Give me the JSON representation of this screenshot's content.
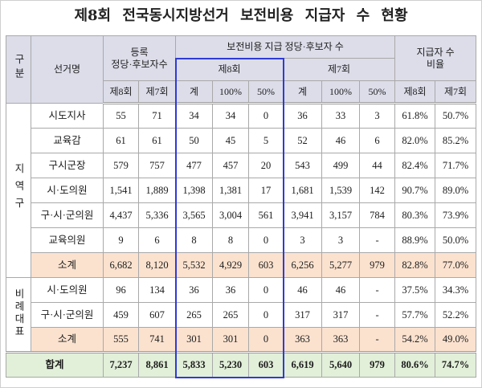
{
  "colors": {
    "header_bg": "#dcdde9",
    "subtotal_bg": "#fbe2cf",
    "total_bg": "#e2efd9",
    "highlight_border": "#2f3bd6"
  },
  "chart_data": {
    "type": "table",
    "title": "제8회 전국동시지방선거 보전비용 지급자 수 현황",
    "headers": {
      "category": "구분",
      "election": "선거명",
      "registered": [
        "등록",
        "정당·후보자수"
      ],
      "reimbursed": "보전비용 지급 정당·후보자 수",
      "ratio": [
        "지급자 수",
        "비율"
      ],
      "eighth": "제8회",
      "seventh": "제7회",
      "sum": "계",
      "full": "100%",
      "half": "50%"
    },
    "groups": [
      {
        "label": "지역구",
        "rows": [
          {
            "name": "시도지사",
            "registered": [
              "55",
              "71"
            ],
            "reimbursed_8th": [
              "34",
              "34",
              "0"
            ],
            "reimbursed_7th": [
              "36",
              "33",
              "3"
            ],
            "ratio": [
              "61.8%",
              "50.7%"
            ]
          },
          {
            "name": "교육감",
            "registered": [
              "61",
              "61"
            ],
            "reimbursed_8th": [
              "50",
              "45",
              "5"
            ],
            "reimbursed_7th": [
              "52",
              "46",
              "6"
            ],
            "ratio": [
              "82.0%",
              "85.2%"
            ]
          },
          {
            "name": "구시군장",
            "registered": [
              "579",
              "757"
            ],
            "reimbursed_8th": [
              "477",
              "457",
              "20"
            ],
            "reimbursed_7th": [
              "543",
              "499",
              "44"
            ],
            "ratio": [
              "82.4%",
              "71.7%"
            ]
          },
          {
            "name": "시·도의원",
            "registered": [
              "1,541",
              "1,889"
            ],
            "reimbursed_8th": [
              "1,398",
              "1,381",
              "17"
            ],
            "reimbursed_7th": [
              "1,681",
              "1,539",
              "142"
            ],
            "ratio": [
              "90.7%",
              "89.0%"
            ]
          },
          {
            "name": "구·시·군의원",
            "registered": [
              "4,437",
              "5,336"
            ],
            "reimbursed_8th": [
              "3,565",
              "3,004",
              "561"
            ],
            "reimbursed_7th": [
              "3,941",
              "3,157",
              "784"
            ],
            "ratio": [
              "80.3%",
              "73.9%"
            ]
          },
          {
            "name": "교육의원",
            "registered": [
              "9",
              "6"
            ],
            "reimbursed_8th": [
              "8",
              "8",
              "0"
            ],
            "reimbursed_7th": [
              "3",
              "3",
              "-"
            ],
            "ratio": [
              "88.9%",
              "50.0%"
            ]
          }
        ],
        "subtotal": {
          "name": "소계",
          "registered": [
            "6,682",
            "8,120"
          ],
          "reimbursed_8th": [
            "5,532",
            "4,929",
            "603"
          ],
          "reimbursed_7th": [
            "6,256",
            "5,277",
            "979"
          ],
          "ratio": [
            "82.8%",
            "77.0%"
          ]
        }
      },
      {
        "label": "비례대표",
        "rows": [
          {
            "name": "시·도의원",
            "registered": [
              "96",
              "134"
            ],
            "reimbursed_8th": [
              "36",
              "36",
              "0"
            ],
            "reimbursed_7th": [
              "46",
              "46",
              "-"
            ],
            "ratio": [
              "37.5%",
              "34.3%"
            ]
          },
          {
            "name": "구·시·군의원",
            "registered": [
              "459",
              "607"
            ],
            "reimbursed_8th": [
              "265",
              "265",
              "0"
            ],
            "reimbursed_7th": [
              "317",
              "317",
              "-"
            ],
            "ratio": [
              "57.7%",
              "52.2%"
            ]
          }
        ],
        "subtotal": {
          "name": "소계",
          "registered": [
            "555",
            "741"
          ],
          "reimbursed_8th": [
            "301",
            "301",
            "0"
          ],
          "reimbursed_7th": [
            "363",
            "363",
            "-"
          ],
          "ratio": [
            "54.2%",
            "49.0%"
          ]
        }
      }
    ],
    "total": {
      "name": "합계",
      "registered": [
        "7,237",
        "8,861"
      ],
      "reimbursed_8th": [
        "5,833",
        "5,230",
        "603"
      ],
      "reimbursed_7th": [
        "6,619",
        "5,640",
        "979"
      ],
      "ratio": [
        "80.6%",
        "74.7%"
      ]
    }
  }
}
